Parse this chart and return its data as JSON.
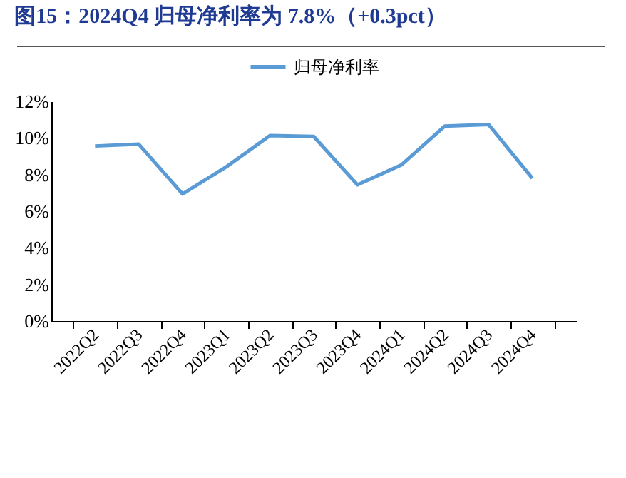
{
  "chart_data": {
    "type": "line",
    "title": "图15：2024Q4 归母净利率为 7.8%（+0.3pct）",
    "categories": [
      "2022Q2",
      "2022Q3",
      "2022Q4",
      "2023Q1",
      "2023Q2",
      "2023Q3",
      "2023Q4",
      "2024Q1",
      "2024Q2",
      "2024Q3",
      "2024Q4"
    ],
    "series": [
      {
        "name": "归母净利率",
        "color": "#5b9bd5",
        "values": [
          9.56,
          9.66,
          6.94,
          8.42,
          10.13,
          10.08,
          7.44,
          8.52,
          10.65,
          10.73,
          7.8
        ]
      }
    ],
    "ylim": [
      0,
      12
    ],
    "yticks": [
      {
        "value": 0,
        "label": "0%"
      },
      {
        "value": 2,
        "label": "2%"
      },
      {
        "value": 4,
        "label": "4%"
      },
      {
        "value": 6,
        "label": "6%"
      },
      {
        "value": 8,
        "label": "8%"
      },
      {
        "value": 10,
        "label": "10%"
      },
      {
        "value": 12,
        "label": "12%"
      }
    ],
    "legend": "top",
    "grid": false,
    "marker": "none",
    "line_style": "solid"
  }
}
